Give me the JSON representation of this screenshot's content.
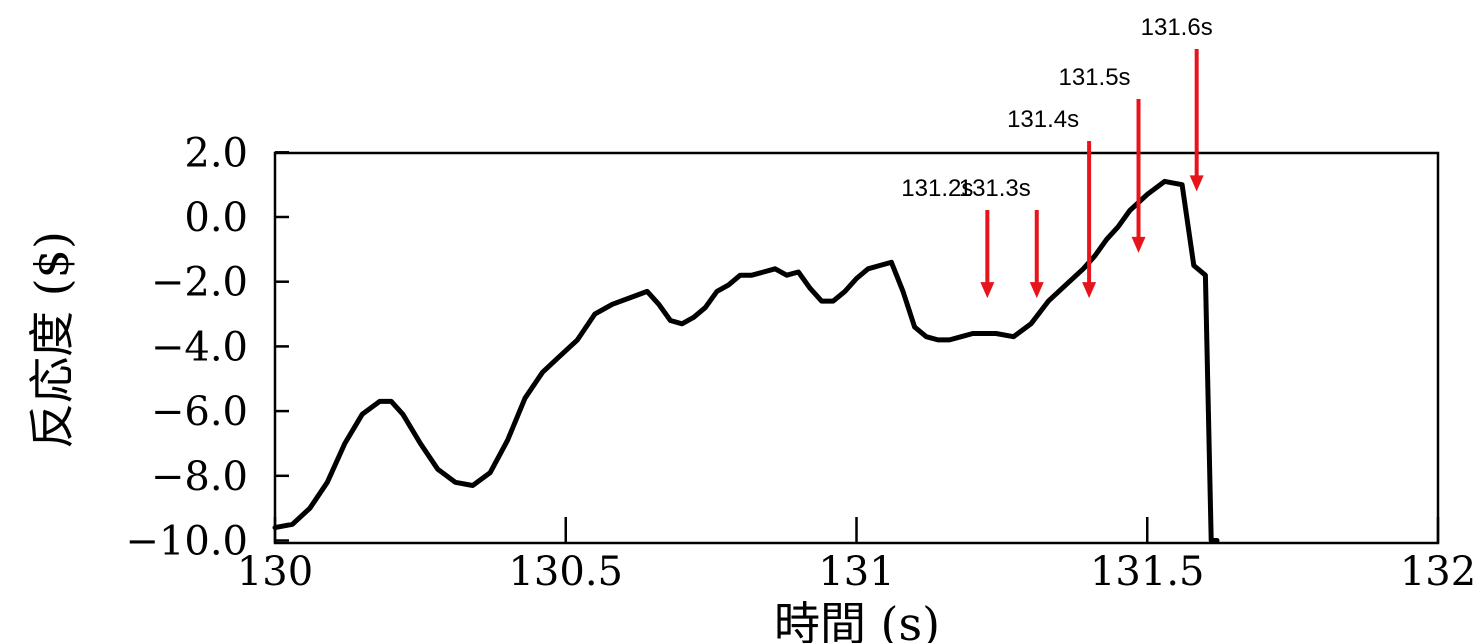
{
  "chart_data": {
    "type": "line",
    "title": "",
    "xlabel": "時間 (s)",
    "ylabel": "反応度 ($)",
    "xlim": [
      130,
      132
    ],
    "ylim": [
      -10.0,
      2.0
    ],
    "x_ticks": [
      {
        "value": 130,
        "label": "130"
      },
      {
        "value": 130.5,
        "label": "130.5"
      },
      {
        "value": 131,
        "label": "131"
      },
      {
        "value": 131.5,
        "label": "131.5"
      },
      {
        "value": 132,
        "label": "132"
      }
    ],
    "y_ticks": [
      {
        "value": 2.0,
        "label": "2.0"
      },
      {
        "value": 0.0,
        "label": "0.0"
      },
      {
        "value": -2.0,
        "label": "−2.0"
      },
      {
        "value": -4.0,
        "label": "−4.0"
      },
      {
        "value": -6.0,
        "label": "−6.0"
      },
      {
        "value": -8.0,
        "label": "−8.0"
      },
      {
        "value": -10.0,
        "label": "−10.0"
      }
    ],
    "grid": false,
    "line_color": "#000000",
    "annotation_color": "#e8141c",
    "series": [
      {
        "x": [
          130.0,
          130.03,
          130.06,
          130.09,
          130.12,
          130.15,
          130.18,
          130.2,
          130.22,
          130.25,
          130.28,
          130.31,
          130.34,
          130.37,
          130.4,
          130.43,
          130.46,
          130.49,
          130.52,
          130.55,
          130.58,
          130.61,
          130.64,
          130.66,
          130.68,
          130.7,
          130.72,
          130.74,
          130.76,
          130.78,
          130.8,
          130.82,
          130.84,
          130.86,
          130.88,
          130.9,
          130.92,
          130.94,
          130.96,
          130.98,
          131.0,
          131.02,
          131.04,
          131.06,
          131.08,
          131.1,
          131.12,
          131.14,
          131.16,
          131.18,
          131.2,
          131.22,
          131.24,
          131.27,
          131.3,
          131.33,
          131.36,
          131.39,
          131.41,
          131.43,
          131.45,
          131.47,
          131.5,
          131.53,
          131.56,
          131.58,
          131.6,
          131.61,
          131.61,
          131.611,
          131.612,
          131.62
        ],
        "y": [
          -9.6,
          -9.5,
          -9.0,
          -8.2,
          -7.0,
          -6.1,
          -5.7,
          -5.7,
          -6.1,
          -7.0,
          -7.8,
          -8.2,
          -8.3,
          -7.9,
          -6.9,
          -5.6,
          -4.8,
          -4.3,
          -3.8,
          -3.0,
          -2.7,
          -2.5,
          -2.3,
          -2.7,
          -3.2,
          -3.3,
          -3.1,
          -2.8,
          -2.3,
          -2.1,
          -1.8,
          -1.8,
          -1.7,
          -1.6,
          -1.8,
          -1.7,
          -2.2,
          -2.6,
          -2.6,
          -2.3,
          -1.9,
          -1.6,
          -1.5,
          -1.4,
          -2.3,
          -3.4,
          -3.7,
          -3.8,
          -3.8,
          -3.7,
          -3.6,
          -3.6,
          -3.6,
          -3.7,
          -3.3,
          -2.6,
          -2.1,
          -1.6,
          -1.2,
          -0.7,
          -0.3,
          0.2,
          0.7,
          1.1,
          1.0,
          -1.5,
          -1.8,
          -10.0,
          -10.0,
          -10.0,
          -10.0,
          -10.0
        ]
      }
    ],
    "annotations": [
      {
        "label": "131.2s",
        "x": 131.225,
        "y": -2.6
      },
      {
        "label": "131.3s",
        "x": 131.31,
        "y": -2.6
      },
      {
        "label": "131.4s",
        "x": 131.4,
        "y": -2.6
      },
      {
        "label": "131.5s",
        "x": 131.485,
        "y": -1.2
      },
      {
        "label": "131.6s",
        "x": 131.585,
        "y": 0.7
      }
    ]
  }
}
